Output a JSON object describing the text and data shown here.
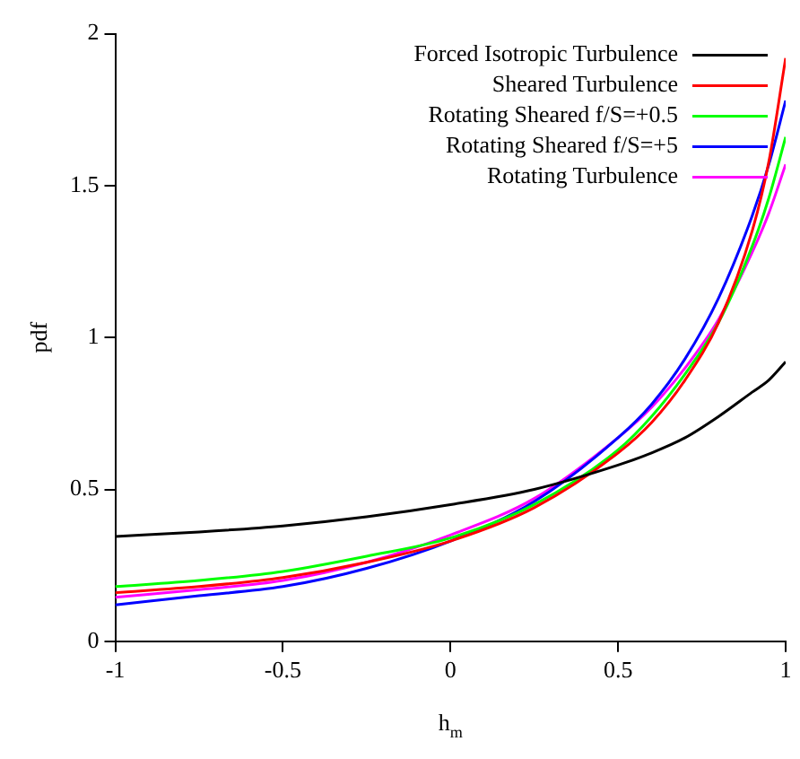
{
  "chart_data": {
    "type": "line",
    "xlabel": "h$_{m}$",
    "ylabel": "pdf",
    "x": [
      -1,
      -0.75,
      -0.5,
      -0.25,
      0,
      0.25,
      0.5,
      0.6,
      0.7,
      0.8,
      0.9,
      0.95,
      1
    ],
    "series": [
      {
        "name": "Forced Isotropic Turbulence",
        "color": "#000000",
        "values": [
          0.345,
          0.36,
          0.38,
          0.41,
          0.45,
          0.5,
          0.58,
          0.62,
          0.67,
          0.74,
          0.82,
          0.86,
          0.92
        ]
      },
      {
        "name": "Sheared Turbulence",
        "color": "#ff0000",
        "values": [
          0.16,
          0.18,
          0.21,
          0.26,
          0.33,
          0.44,
          0.62,
          0.72,
          0.86,
          1.05,
          1.35,
          1.58,
          1.92
        ]
      },
      {
        "name": "Rotating Sheared f/S=+0.5",
        "color": "#00ff00",
        "values": [
          0.18,
          0.2,
          0.23,
          0.28,
          0.34,
          0.45,
          0.63,
          0.74,
          0.88,
          1.05,
          1.3,
          1.46,
          1.66
        ]
      },
      {
        "name": "Rotating Sheared f/S=+5",
        "color": "#0000ff",
        "values": [
          0.12,
          0.15,
          0.18,
          0.24,
          0.33,
          0.46,
          0.67,
          0.78,
          0.93,
          1.13,
          1.4,
          1.57,
          1.78
        ]
      },
      {
        "name": "Rotating Turbulence",
        "color": "#ff00ff",
        "values": [
          0.145,
          0.17,
          0.2,
          0.26,
          0.35,
          0.47,
          0.67,
          0.77,
          0.9,
          1.06,
          1.28,
          1.41,
          1.57
        ]
      }
    ],
    "xlim": [
      -1,
      1
    ],
    "xticks": [
      -1,
      -0.5,
      0,
      0.5,
      1
    ],
    "ylim": [
      0,
      2
    ],
    "yticks": [
      0,
      0.5,
      1,
      1.5,
      2
    ],
    "grid": false,
    "legend": "top right",
    "marker": "none",
    "line_style": "solid"
  }
}
